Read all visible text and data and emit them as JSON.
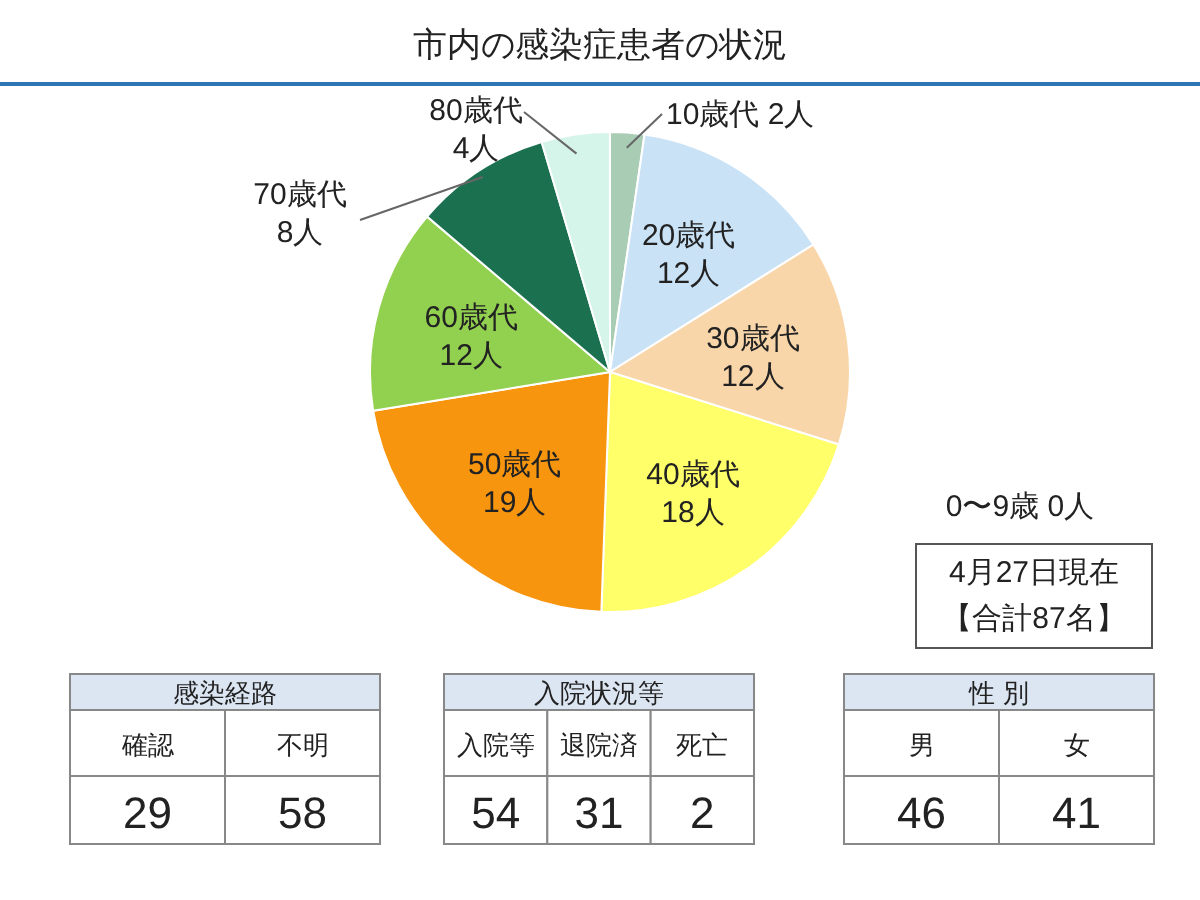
{
  "chart_data": [
    {
      "type": "pie",
      "title": "市内の感染症患者の状況",
      "categories": [
        "10歳代",
        "20歳代",
        "30歳代",
        "40歳代",
        "50歳代",
        "60歳代",
        "70歳代",
        "80歳代"
      ],
      "values": [
        2,
        12,
        12,
        18,
        19,
        12,
        8,
        4
      ],
      "value_labels": [
        "2人",
        "12人",
        "12人",
        "18人",
        "19人",
        "12人",
        "8人",
        "4人"
      ],
      "colors": [
        "#a8ccb4",
        "#c9e2f6",
        "#f9d6aa",
        "#ffff6a",
        "#f7950f",
        "#92d050",
        "#1b7050",
        "#d6f5ea"
      ],
      "annotations": [
        "0〜9歳 0人",
        "4月27日現在",
        "【合計87名】"
      ]
    },
    {
      "type": "other",
      "title": "感染経路",
      "categories": [
        "確認",
        "不明"
      ],
      "values": [
        29,
        58
      ],
      "data_labels": true
    },
    {
      "type": "other",
      "title": "入院状況等",
      "categories": [
        "入院等",
        "退院済",
        "死亡"
      ],
      "values": [
        54,
        31,
        2
      ],
      "data_labels": true
    },
    {
      "type": "other",
      "title": "性 別",
      "categories": [
        "男",
        "女"
      ],
      "values": [
        46,
        41
      ],
      "data_labels": true
    }
  ]
}
